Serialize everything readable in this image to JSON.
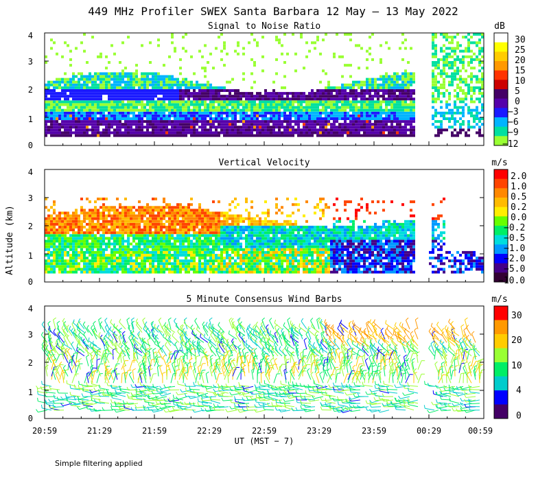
{
  "main_title": "449 MHz Profiler SWEX Santa Barbara 12 May — 13 May 2022",
  "footnote": "Simple filtering applied",
  "y_axis_label": "Altitude (km)",
  "x_axis_label": "UT  (MST − 7)",
  "chart_data": [
    {
      "type": "heatmap",
      "title": "Signal to Noise Ratio",
      "unit": "dB",
      "y_ticks": [
        "0",
        "1",
        "2",
        "3",
        "4"
      ],
      "ylim": [
        0,
        4
      ],
      "colorbar_labels": [
        "30",
        "25",
        "20",
        "15",
        "10",
        "5",
        "0",
        "−3",
        "−6",
        "−9",
        "−12"
      ],
      "colorbar_colors": [
        "#ffffff",
        "#ffff00",
        "#ffcc00",
        "#ff9900",
        "#ff3300",
        "#cc0000",
        "#440066",
        "#5500aa",
        "#1a1aff",
        "#00b4ff",
        "#00e0a0",
        "#99ff33"
      ]
    },
    {
      "type": "heatmap",
      "title": "Vertical Velocity",
      "unit": "m/s",
      "y_ticks": [
        "0",
        "1",
        "2",
        "3",
        "4"
      ],
      "ylim": [
        0,
        4
      ],
      "colorbar_labels": [
        "2.0",
        "1.0",
        "0.5",
        "0.2",
        "0.0",
        "−0.2",
        "−0.5",
        "−1.0",
        "−2.0",
        "−5.0",
        "−10.0"
      ],
      "colorbar_colors": [
        "#ff0000",
        "#ff4400",
        "#ff8800",
        "#ffbb00",
        "#ffee00",
        "#66ff00",
        "#00ee66",
        "#00dddd",
        "#0099ff",
        "#0000ff",
        "#440088",
        "#330033"
      ]
    },
    {
      "type": "scatter",
      "title": "5 Minute Consensus Wind Barbs",
      "unit": "m/s",
      "y_ticks": [
        "0",
        "1",
        "2",
        "3",
        "4"
      ],
      "ylim": [
        0,
        4
      ],
      "colorbar_labels": [
        "30",
        "20",
        "10",
        "4",
        "0"
      ],
      "colorbar_colors": [
        "#ff0000",
        "#ff9900",
        "#ffcc00",
        "#99ff33",
        "#00ee66",
        "#00cccc",
        "#0000ff",
        "#440066"
      ]
    }
  ],
  "x_ticks": [
    "20:59",
    "21:29",
    "21:59",
    "22:29",
    "22:59",
    "23:29",
    "23:59",
    "00:29",
    "00:59"
  ]
}
